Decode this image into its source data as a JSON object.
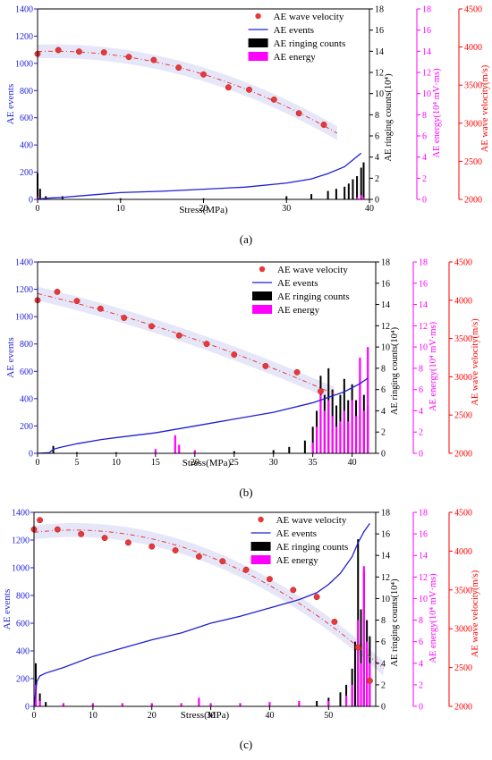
{
  "colors": {
    "events": "#1f1fd6",
    "ringing": "#000000",
    "energy": "#ff00ff",
    "velocity_marker": "#e8393a",
    "velocity_axis": "#ff0000",
    "events_axis": "#1f1fd6",
    "energy_axis": "#ff00ff",
    "band": "#b8b8ee"
  },
  "chart_data": [
    {
      "type": "line",
      "panel_label": "(a)",
      "xlabel": "Stress(MPa)",
      "xlim": [
        0,
        40
      ],
      "xticks": [
        0,
        10,
        20,
        30,
        40
      ],
      "y_left": {
        "label": "AE events",
        "lim": [
          0,
          1400
        ],
        "ticks": [
          0,
          200,
          400,
          600,
          800,
          1000,
          1200,
          1400
        ]
      },
      "y_ringing": {
        "label": "AE ringing counts(10⁴)",
        "lim": [
          0,
          18
        ],
        "ticks": [
          0,
          2,
          4,
          6,
          8,
          10,
          12,
          14,
          16,
          18
        ]
      },
      "y_energy": {
        "label": "AE energy(10⁴ mV·ms)",
        "lim": [
          0,
          18
        ],
        "ticks": [
          0,
          2,
          4,
          6,
          8,
          10,
          12,
          14,
          16,
          18
        ]
      },
      "y_velocity": {
        "label": "AE wave velocity(m/s)",
        "lim": [
          2000,
          4500
        ],
        "ticks": [
          2000,
          2500,
          3000,
          3500,
          4000,
          4500
        ]
      },
      "legend": [
        "AE wave velocity",
        "AE events",
        "AE ringing counts",
        "AE energy"
      ],
      "legend_position": "top-right",
      "series": [
        {
          "name": "AE wave velocity",
          "kind": "scatter+fit",
          "x": [
            0,
            2.5,
            5,
            8,
            11,
            14,
            17,
            20,
            23,
            25.5,
            28.5,
            31.5,
            34.5
          ],
          "values": [
            3910,
            3960,
            3940,
            3930,
            3870,
            3830,
            3730,
            3640,
            3470,
            3440,
            3310,
            3130,
            2980
          ]
        },
        {
          "name": "AE events",
          "kind": "line",
          "x": [
            0,
            0.5,
            1,
            2,
            3,
            5,
            10,
            15,
            20,
            25,
            30,
            33,
            35,
            37,
            38,
            39
          ],
          "values": [
            0,
            5,
            8,
            12,
            15,
            25,
            50,
            60,
            75,
            90,
            120,
            150,
            190,
            240,
            290,
            340
          ]
        },
        {
          "name": "AE ringing counts",
          "kind": "bar",
          "x": [
            0,
            0.3,
            1,
            3,
            10,
            20,
            30,
            33,
            35,
            36,
            37,
            37.5,
            38,
            38.5,
            39,
            39.3
          ],
          "values": [
            2.5,
            1.0,
            0.3,
            0.3,
            0.1,
            0.1,
            0.3,
            0.5,
            0.8,
            1.0,
            1.2,
            1.5,
            1.9,
            2.2,
            3.0,
            3.5
          ]
        },
        {
          "name": "AE energy",
          "kind": "bar",
          "x": [
            0,
            38.5,
            39,
            39.3
          ],
          "values": [
            0.3,
            0.2,
            0.4,
            0.2
          ]
        }
      ]
    },
    {
      "type": "line",
      "panel_label": "(b)",
      "xlabel": "Stress(MPa)",
      "xlim": [
        0,
        43
      ],
      "xticks": [
        0,
        5,
        10,
        15,
        20,
        25,
        30,
        35,
        40
      ],
      "y_left": {
        "label": "AE events",
        "lim": [
          0,
          1400
        ],
        "ticks": [
          0,
          200,
          400,
          600,
          800,
          1000,
          1200,
          1400
        ]
      },
      "y_ringing": {
        "label": "AE ringing counts(10⁴)",
        "lim": [
          0,
          18
        ],
        "ticks": [
          0,
          2,
          4,
          6,
          8,
          10,
          12,
          14,
          16,
          18
        ]
      },
      "y_energy": {
        "label": "AE energy(10⁴ mV·ms)",
        "lim": [
          0,
          18
        ],
        "ticks": [
          0,
          2,
          4,
          6,
          8,
          10,
          12,
          14,
          16,
          18
        ]
      },
      "y_velocity": {
        "label": "AE wave velocity(m/s)",
        "lim": [
          2000,
          4500
        ],
        "ticks": [
          2000,
          2500,
          3000,
          3500,
          4000,
          4500
        ]
      },
      "legend": [
        "AE wave velocity",
        "AE events",
        "AE ringing counts",
        "AE energy"
      ],
      "legend_position": "top-right",
      "series": [
        {
          "name": "AE wave velocity",
          "kind": "scatter+fit",
          "x": [
            0,
            2.5,
            5,
            8,
            11,
            14.5,
            18,
            21.5,
            25,
            29,
            33,
            36
          ],
          "values": [
            4000,
            4110,
            3990,
            3890,
            3770,
            3660,
            3540,
            3430,
            3290,
            3140,
            3060,
            2810
          ]
        },
        {
          "name": "AE events",
          "kind": "line",
          "x": [
            0,
            1.5,
            2,
            3,
            5,
            8,
            10,
            15,
            20,
            25,
            30,
            35,
            37,
            39,
            40,
            41,
            42
          ],
          "values": [
            0,
            5,
            30,
            45,
            70,
            100,
            115,
            150,
            200,
            250,
            300,
            370,
            410,
            450,
            480,
            510,
            550
          ]
        },
        {
          "name": "AE ringing counts",
          "kind": "bar",
          "x": [
            2,
            5,
            10,
            15,
            20,
            25,
            30,
            32,
            34,
            35,
            35.5,
            36,
            36.5,
            37,
            37.5,
            38,
            38.5,
            39,
            39.5,
            40,
            40.5,
            41,
            41.5,
            42
          ],
          "values": [
            0.7,
            0.1,
            0.1,
            0.1,
            0.1,
            0.2,
            0.3,
            0.6,
            1.2,
            2.5,
            4.0,
            7.3,
            5.5,
            8.0,
            6.0,
            4.5,
            5.5,
            7.0,
            5.0,
            6.5,
            5.0,
            7.0,
            5.5,
            4.5
          ]
        },
        {
          "name": "AE energy",
          "kind": "bar",
          "x": [
            15,
            17.5,
            18,
            20,
            35,
            35.5,
            36,
            36.5,
            37,
            37.5,
            38,
            38.5,
            39,
            39.5,
            40,
            40.5,
            41,
            41.5,
            42
          ],
          "values": [
            0.4,
            1.7,
            0.8,
            0.3,
            1.0,
            2.5,
            5.5,
            4.0,
            5.0,
            3.5,
            2.5,
            3.0,
            4.0,
            3.0,
            5.0,
            3.5,
            9.0,
            4.0,
            10.0
          ]
        }
      ]
    },
    {
      "type": "line",
      "panel_label": "(c)",
      "xlabel": "Stress(MPa)",
      "xlim": [
        0,
        58
      ],
      "xticks": [
        0,
        10,
        20,
        30,
        40,
        50
      ],
      "y_left": {
        "label": "AE events",
        "lim": [
          0,
          1400
        ],
        "ticks": [
          0,
          200,
          400,
          600,
          800,
          1000,
          1200,
          1400
        ]
      },
      "y_ringing": {
        "label": "AE ringing counts(10⁴)",
        "lim": [
          0,
          18
        ],
        "ticks": [
          0,
          2,
          4,
          6,
          8,
          10,
          12,
          14,
          16,
          18
        ]
      },
      "y_energy": {
        "label": "AE energy(10⁴ mV·ms)",
        "lim": [
          0,
          18
        ],
        "ticks": [
          0,
          2,
          4,
          6,
          8,
          10,
          12,
          14,
          16,
          18
        ]
      },
      "y_velocity": {
        "label": "AE wave velocity(m/s)",
        "lim": [
          2000,
          4500
        ],
        "ticks": [
          2000,
          2500,
          3000,
          3500,
          4000,
          4500
        ]
      },
      "legend": [
        "AE wave velocity",
        "AE events",
        "AE ringing counts",
        "AE energy"
      ],
      "legend_position": "top-right",
      "series": [
        {
          "name": "AE wave velocity",
          "kind": "scatter+fit",
          "x": [
            0,
            1,
            4,
            8,
            12,
            16,
            20,
            24,
            28,
            32,
            36,
            40,
            44,
            48,
            51,
            55,
            57
          ],
          "values": [
            4280,
            4400,
            4280,
            4220,
            4170,
            4110,
            4060,
            4010,
            3930,
            3870,
            3760,
            3640,
            3500,
            3410,
            3090,
            2760,
            2330
          ]
        },
        {
          "name": "AE events",
          "kind": "line",
          "x": [
            0,
            0.5,
            1,
            2,
            5,
            10,
            15,
            20,
            25,
            30,
            35,
            40,
            45,
            48,
            50,
            52,
            54,
            55,
            56,
            57
          ],
          "values": [
            0,
            180,
            220,
            240,
            280,
            360,
            420,
            480,
            530,
            600,
            650,
            710,
            770,
            820,
            880,
            960,
            1080,
            1180,
            1260,
            1320
          ]
        },
        {
          "name": "AE ringing counts",
          "kind": "bar",
          "x": [
            0.3,
            1,
            2,
            5,
            10,
            20,
            30,
            40,
            45,
            48,
            50,
            52,
            53,
            54,
            54.5,
            55,
            55.5,
            56,
            56.5,
            57
          ],
          "values": [
            4.0,
            1.2,
            0.4,
            0.2,
            0.2,
            0.2,
            0.2,
            0.3,
            0.3,
            0.5,
            0.8,
            1.3,
            2.0,
            3.5,
            6.0,
            15.5,
            9.0,
            12.5,
            8.0,
            6.5
          ]
        },
        {
          "name": "AE energy",
          "kind": "bar",
          "x": [
            0.3,
            1,
            5,
            10,
            15,
            20,
            25,
            28,
            30,
            35,
            40,
            45,
            50,
            53,
            54,
            55,
            55.5,
            56,
            56.5,
            57
          ],
          "values": [
            2.0,
            0.5,
            0.3,
            0.3,
            0.3,
            0.3,
            0.3,
            0.8,
            0.3,
            0.3,
            0.4,
            0.5,
            0.5,
            1.0,
            2.0,
            8.0,
            4.0,
            13.0,
            6.0,
            4.0
          ]
        }
      ]
    }
  ]
}
